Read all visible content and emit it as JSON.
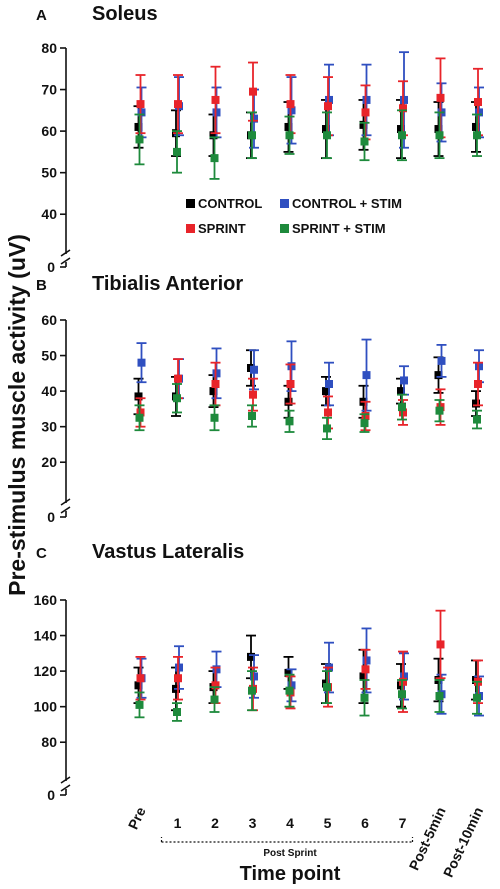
{
  "y_axis_label": "Pre-stimulus muscle activity (uV)",
  "x_axis_label": "Time point",
  "post_sprint_label": "Post Sprint",
  "x_tick_labels": [
    "Pre",
    "1",
    "2",
    "3",
    "4",
    "5",
    "6",
    "7",
    "Post-5min",
    "Post-10min"
  ],
  "legend": [
    {
      "label": "CONTROL",
      "color": "#000000"
    },
    {
      "label": "CONTROL + STIM",
      "color": "#2f4fc0"
    },
    {
      "label": "SPRINT",
      "color": "#e8242a"
    },
    {
      "label": "SPRINT + STIM",
      "color": "#1e8a3c"
    }
  ],
  "chart_data": [
    {
      "type": "scatter",
      "panel": "A",
      "title": "Soleus",
      "ylim": [
        35,
        80
      ],
      "yticks": [
        40,
        50,
        60,
        70,
        80
      ],
      "axis_break_label": "0",
      "categories": [
        "Pre",
        "1",
        "2",
        "3",
        "4",
        "5",
        "6",
        "7",
        "Post-5min",
        "Post-10min"
      ],
      "series": [
        {
          "name": "CONTROL",
          "color": "#000000",
          "values": [
            61,
            59.5,
            59,
            59,
            61,
            60.5,
            61.5,
            60.5,
            60.5,
            61
          ],
          "errors": [
            5,
            5.5,
            5,
            5.5,
            6,
            7,
            6,
            7,
            6.5,
            6
          ]
        },
        {
          "name": "CONTROL + STIM",
          "color": "#2f4fc0",
          "values": [
            64.5,
            66,
            64.5,
            63,
            65,
            67.5,
            67.5,
            67.5,
            64.5,
            64.5
          ],
          "errors": [
            6,
            7,
            6,
            7,
            8,
            8.5,
            8.5,
            11.5,
            7,
            6
          ]
        },
        {
          "name": "SPRINT",
          "color": "#e8242a",
          "values": [
            66.5,
            66.5,
            67.5,
            69.5,
            66.5,
            66,
            64.5,
            65.5,
            68,
            67
          ],
          "errors": [
            7,
            7,
            8,
            7,
            7,
            7,
            6.5,
            6.5,
            9.5,
            8
          ]
        },
        {
          "name": "SPRINT + STIM",
          "color": "#1e8a3c",
          "values": [
            58,
            55,
            53.5,
            59,
            59,
            59,
            57.5,
            59,
            59,
            59
          ],
          "errors": [
            6,
            5,
            5,
            5.5,
            4.5,
            5.5,
            4.5,
            6,
            5.5,
            5
          ]
        }
      ]
    },
    {
      "type": "scatter",
      "panel": "B",
      "title": "Tibialis Anterior",
      "ylim": [
        15,
        60
      ],
      "yticks": [
        20,
        30,
        40,
        50,
        60
      ],
      "axis_break_label": "0",
      "categories": [
        "Pre",
        "1",
        "2",
        "3",
        "4",
        "5",
        "6",
        "7",
        "Post-5min",
        "Post-10min"
      ],
      "series": [
        {
          "name": "CONTROL",
          "color": "#000000",
          "values": [
            38.5,
            38.5,
            40,
            46.5,
            37,
            40,
            37,
            40,
            44.5,
            36.5
          ],
          "errors": [
            5,
            5.5,
            4.5,
            5,
            4.5,
            4,
            4.5,
            3.5,
            5,
            3.5
          ]
        },
        {
          "name": "CONTROL + STIM",
          "color": "#2f4fc0",
          "values": [
            48,
            43.5,
            45,
            46,
            47,
            42,
            44.5,
            43,
            48.5,
            47
          ],
          "errors": [
            5.5,
            5.5,
            7,
            5.5,
            7,
            6,
            10,
            4,
            4.5,
            4.5
          ]
        },
        {
          "name": "SPRINT",
          "color": "#e8242a",
          "values": [
            34,
            43.5,
            42,
            39,
            42,
            34,
            33,
            34,
            35.5,
            42
          ],
          "errors": [
            4,
            5.5,
            6,
            4.5,
            5.5,
            4.5,
            4,
            3.5,
            5,
            6
          ]
        },
        {
          "name": "SPRINT + STIM",
          "color": "#1e8a3c",
          "values": [
            32.5,
            38,
            32.5,
            33,
            31.5,
            29.5,
            31,
            35.5,
            34.5,
            32
          ],
          "errors": [
            3.5,
            4,
            3.5,
            3,
            3,
            3,
            2.5,
            3.5,
            3,
            2.5
          ]
        }
      ]
    },
    {
      "type": "scatter",
      "panel": "C",
      "title": "Vastus Lateralis",
      "ylim": [
        70,
        160
      ],
      "yticks": [
        80,
        100,
        120,
        140,
        160
      ],
      "axis_break_label": "0",
      "categories": [
        "Pre",
        "1",
        "2",
        "3",
        "4",
        "5",
        "6",
        "7",
        "Post-5min",
        "Post-10min"
      ],
      "series": [
        {
          "name": "CONTROL",
          "color": "#000000",
          "values": [
            112,
            110,
            111,
            128,
            119,
            113,
            117,
            112,
            115,
            115
          ],
          "errors": [
            10,
            12,
            9,
            12,
            9,
            11,
            15,
            12,
            12,
            11
          ]
        },
        {
          "name": "CONTROL + STIM",
          "color": "#2f4fc0",
          "values": [
            116,
            122,
            121,
            117,
            112,
            122,
            126,
            117,
            107,
            106
          ],
          "errors": [
            11,
            12,
            10,
            12,
            9,
            14,
            18,
            13,
            11,
            11
          ]
        },
        {
          "name": "SPRINT",
          "color": "#e8242a",
          "values": [
            116,
            116,
            112,
            110,
            108,
            111,
            121,
            114,
            135,
            114
          ],
          "errors": [
            12,
            12,
            10,
            12,
            9,
            11,
            11,
            17,
            19,
            12
          ]
        },
        {
          "name": "SPRINT + STIM",
          "color": "#1e8a3c",
          "values": [
            101,
            97,
            104,
            109,
            109,
            111,
            105,
            107,
            106,
            105
          ],
          "errors": [
            7,
            5,
            7,
            11,
            9,
            9,
            10,
            8,
            9,
            9
          ]
        }
      ]
    }
  ]
}
